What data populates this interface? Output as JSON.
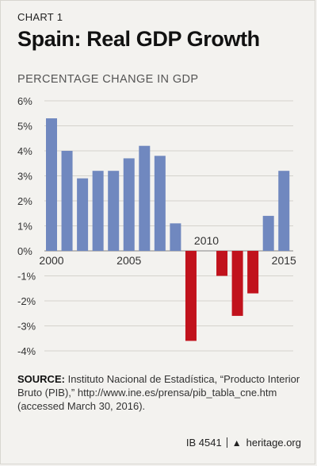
{
  "header": {
    "kicker": "CHART 1",
    "title": "Spain: Real GDP Growth"
  },
  "chart_data": {
    "type": "bar",
    "ylabel": "PERCENTAGE CHANGE IN GDP",
    "x": [
      2000,
      2001,
      2002,
      2003,
      2004,
      2005,
      2006,
      2007,
      2008,
      2009,
      2010,
      2011,
      2012,
      2013,
      2014,
      2015
    ],
    "values": [
      5.3,
      4.0,
      2.9,
      3.2,
      3.2,
      3.7,
      4.2,
      3.8,
      1.1,
      -3.6,
      0.0,
      -1.0,
      -2.6,
      -1.7,
      1.4,
      3.2
    ],
    "ylim": [
      -4,
      6
    ],
    "yticks": [
      6,
      5,
      4,
      3,
      2,
      1,
      0,
      -1,
      -2,
      -3,
      -4
    ],
    "ytick_labels": [
      "6%",
      "5%",
      "4%",
      "3%",
      "2%",
      "1%",
      "0%",
      "-1%",
      "-2%",
      "-3%",
      "-4%"
    ],
    "xtick_labels": [
      "2000",
      "2005",
      "2010",
      "2015"
    ],
    "colors": {
      "positive": "#7088bf",
      "negative": "#c1121c"
    },
    "grid": true
  },
  "source": {
    "label": "SOURCE:",
    "text": "Instituto Nacional de Estadística, “Producto Interior Bruto (PIB),” http://www.ine.es/prensa/pib_tabla_cne.htm (accessed March 30, 2016)."
  },
  "footer": {
    "code": "IB 4541",
    "site": "heritage.org"
  }
}
